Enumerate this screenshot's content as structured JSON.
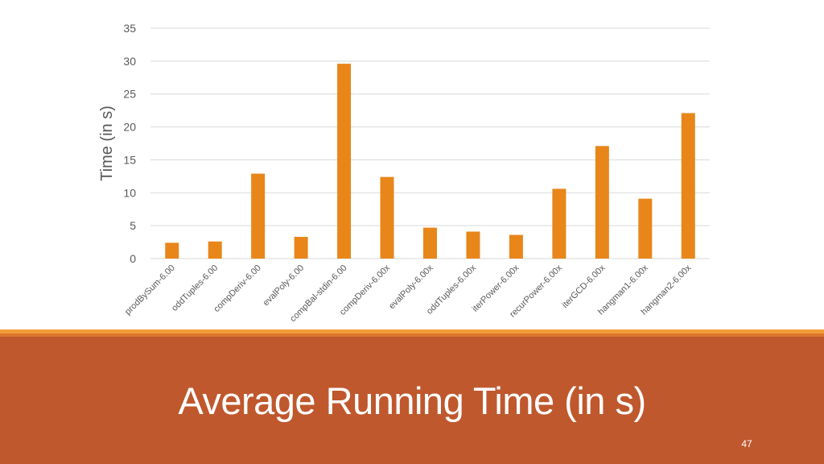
{
  "slide": {
    "title": "Average Running Time (in s)",
    "number": "47"
  },
  "colors": {
    "bar": "#e8861a",
    "footer": "#bf582d",
    "stripe_light": "#f29c3a",
    "stripe_dark": "#d9772b",
    "grid": "#d9d9d9",
    "axis_text": "#595959"
  },
  "chart_data": {
    "type": "bar",
    "title": "",
    "xlabel": "",
    "ylabel": "Time (in s)",
    "ylim": [
      0,
      35
    ],
    "yticks": [
      0,
      5,
      10,
      15,
      20,
      25,
      30,
      35
    ],
    "grid": true,
    "legend": "none",
    "categories": [
      "prodBySum-6.00",
      "oddTuples-6.00",
      "compDeriv-6.00",
      "evalPoly-6.00",
      "compBal-stdin-6.00",
      "compDeriv-6.00x",
      "evalPoly-6.00x",
      "oddTuples-6.00x",
      "iterPower-6.00x",
      "recurPower-6.00x",
      "iterGCD-6.00x",
      "hangman1-6.00x",
      "hangman2-6.00x"
    ],
    "values": [
      2.4,
      2.6,
      12.9,
      3.3,
      29.6,
      12.4,
      4.7,
      4.1,
      3.6,
      10.6,
      17.1,
      9.1,
      22.1
    ]
  }
}
